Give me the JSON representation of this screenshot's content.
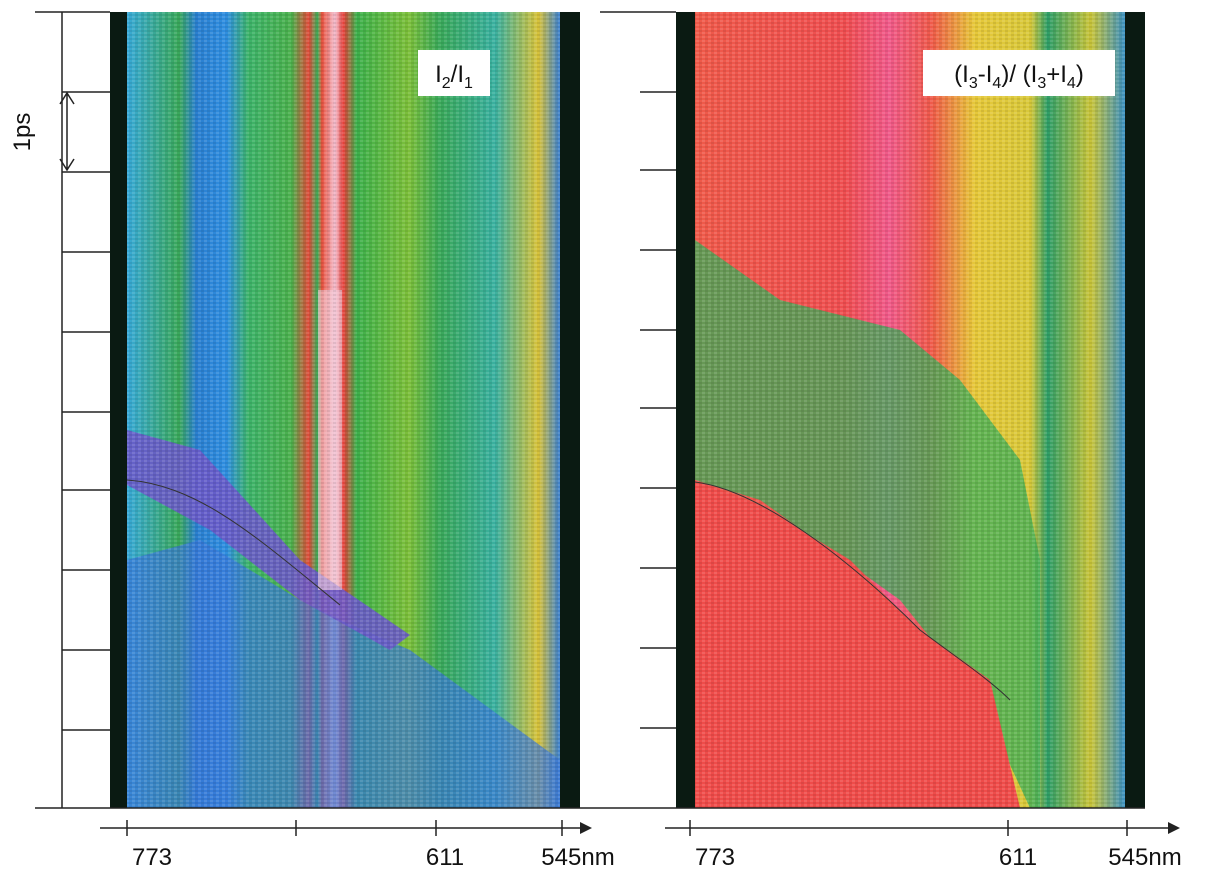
{
  "time_scale": {
    "label": "1ps"
  },
  "panels": [
    {
      "label": [
        "I",
        "2",
        "/I",
        "1"
      ],
      "x_labels": [
        "773",
        "611",
        "545nm"
      ]
    },
    {
      "label": [
        "(I",
        "3",
        "-I",
        "4",
        ")/ (I",
        "3",
        "+I",
        "4",
        ")"
      ],
      "x_labels": [
        "773",
        "611",
        "545nm"
      ]
    }
  ]
}
